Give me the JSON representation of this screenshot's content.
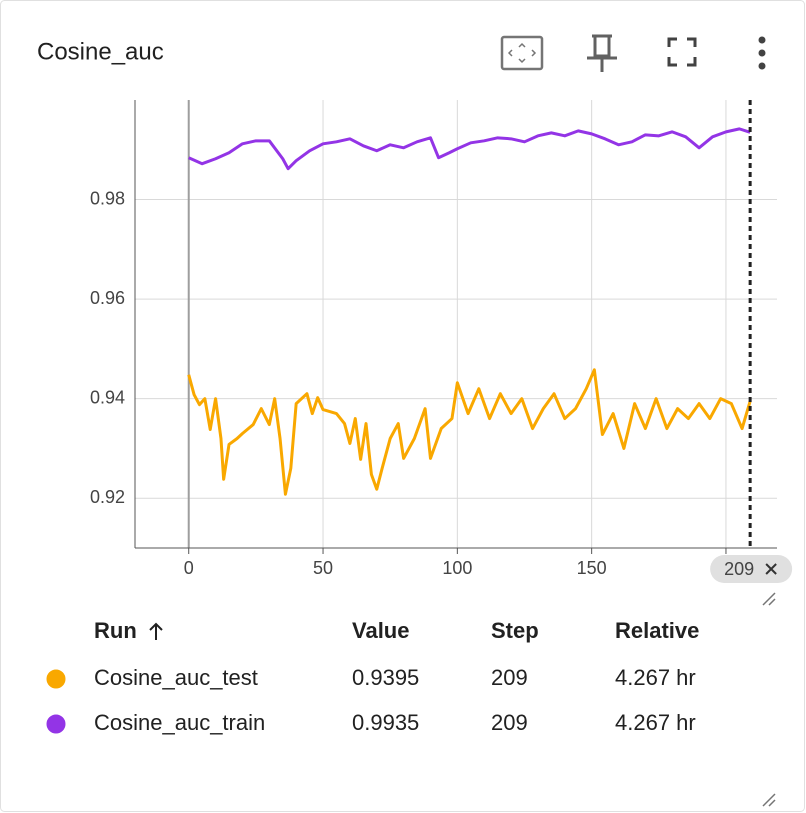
{
  "card": {
    "title": "Cosine_auc"
  },
  "chart_data": {
    "type": "line",
    "xlim": [
      -20,
      219
    ],
    "ylim": [
      0.91,
      1.0
    ],
    "xticks": [
      0,
      50,
      100,
      150,
      200
    ],
    "yticks": [
      0.92,
      0.94,
      0.96,
      0.98
    ],
    "grid": true,
    "cursor_step": 209,
    "series": [
      {
        "name": "Cosine_auc_test",
        "color": "#f9a800",
        "x": [
          0,
          2,
          4,
          6,
          8,
          10,
          12,
          13,
          15,
          18,
          20,
          24,
          27,
          30,
          32,
          34,
          36,
          38,
          40,
          44,
          46,
          48,
          50,
          55,
          58,
          60,
          62,
          64,
          66,
          68,
          70,
          72,
          75,
          78,
          80,
          84,
          88,
          90,
          94,
          98,
          100,
          104,
          108,
          112,
          116,
          120,
          124,
          128,
          132,
          136,
          140,
          144,
          148,
          151,
          154,
          158,
          162,
          166,
          170,
          174,
          178,
          182,
          186,
          190,
          194,
          198,
          202,
          206,
          209
        ],
        "values": [
          0.9448,
          0.9408,
          0.9388,
          0.94,
          0.9338,
          0.94,
          0.932,
          0.9238,
          0.9308,
          0.932,
          0.933,
          0.9348,
          0.938,
          0.9348,
          0.94,
          0.932,
          0.9208,
          0.926,
          0.939,
          0.941,
          0.937,
          0.9402,
          0.9378,
          0.937,
          0.935,
          0.931,
          0.936,
          0.9278,
          0.935,
          0.9248,
          0.9218,
          0.926,
          0.932,
          0.935,
          0.928,
          0.932,
          0.938,
          0.928,
          0.934,
          0.936,
          0.9432,
          0.937,
          0.942,
          0.936,
          0.941,
          0.937,
          0.94,
          0.934,
          0.938,
          0.941,
          0.936,
          0.938,
          0.942,
          0.9458,
          0.9328,
          0.937,
          0.93,
          0.939,
          0.934,
          0.94,
          0.934,
          0.938,
          0.936,
          0.939,
          0.936,
          0.94,
          0.939,
          0.934,
          0.9395
        ]
      },
      {
        "name": "Cosine_auc_train",
        "color": "#9334e6",
        "x": [
          0,
          5,
          10,
          15,
          20,
          25,
          30,
          35,
          37,
          40,
          45,
          50,
          55,
          60,
          65,
          70,
          75,
          80,
          85,
          90,
          93,
          97,
          100,
          105,
          110,
          115,
          120,
          125,
          130,
          135,
          140,
          145,
          150,
          155,
          160,
          165,
          170,
          175,
          180,
          185,
          190,
          195,
          200,
          205,
          209
        ],
        "values": [
          0.9884,
          0.9872,
          0.9882,
          0.9894,
          0.9912,
          0.9918,
          0.9918,
          0.9882,
          0.9862,
          0.9878,
          0.9898,
          0.9912,
          0.9916,
          0.9922,
          0.9908,
          0.9898,
          0.991,
          0.9904,
          0.9916,
          0.9924,
          0.9884,
          0.9894,
          0.9902,
          0.9914,
          0.9918,
          0.9924,
          0.9922,
          0.9916,
          0.9928,
          0.9934,
          0.9928,
          0.9938,
          0.9932,
          0.9922,
          0.991,
          0.9916,
          0.993,
          0.9928,
          0.9936,
          0.9926,
          0.9904,
          0.9926,
          0.9936,
          0.9942,
          0.9935
        ]
      }
    ]
  },
  "table": {
    "headers": [
      "Run",
      "Value",
      "Step",
      "Relative"
    ],
    "rows": [
      [
        "Cosine_auc_test",
        0.9395,
        209,
        "4.267 hr"
      ],
      [
        "Cosine_auc_train",
        0.9935,
        209,
        "4.267 hr"
      ]
    ]
  }
}
